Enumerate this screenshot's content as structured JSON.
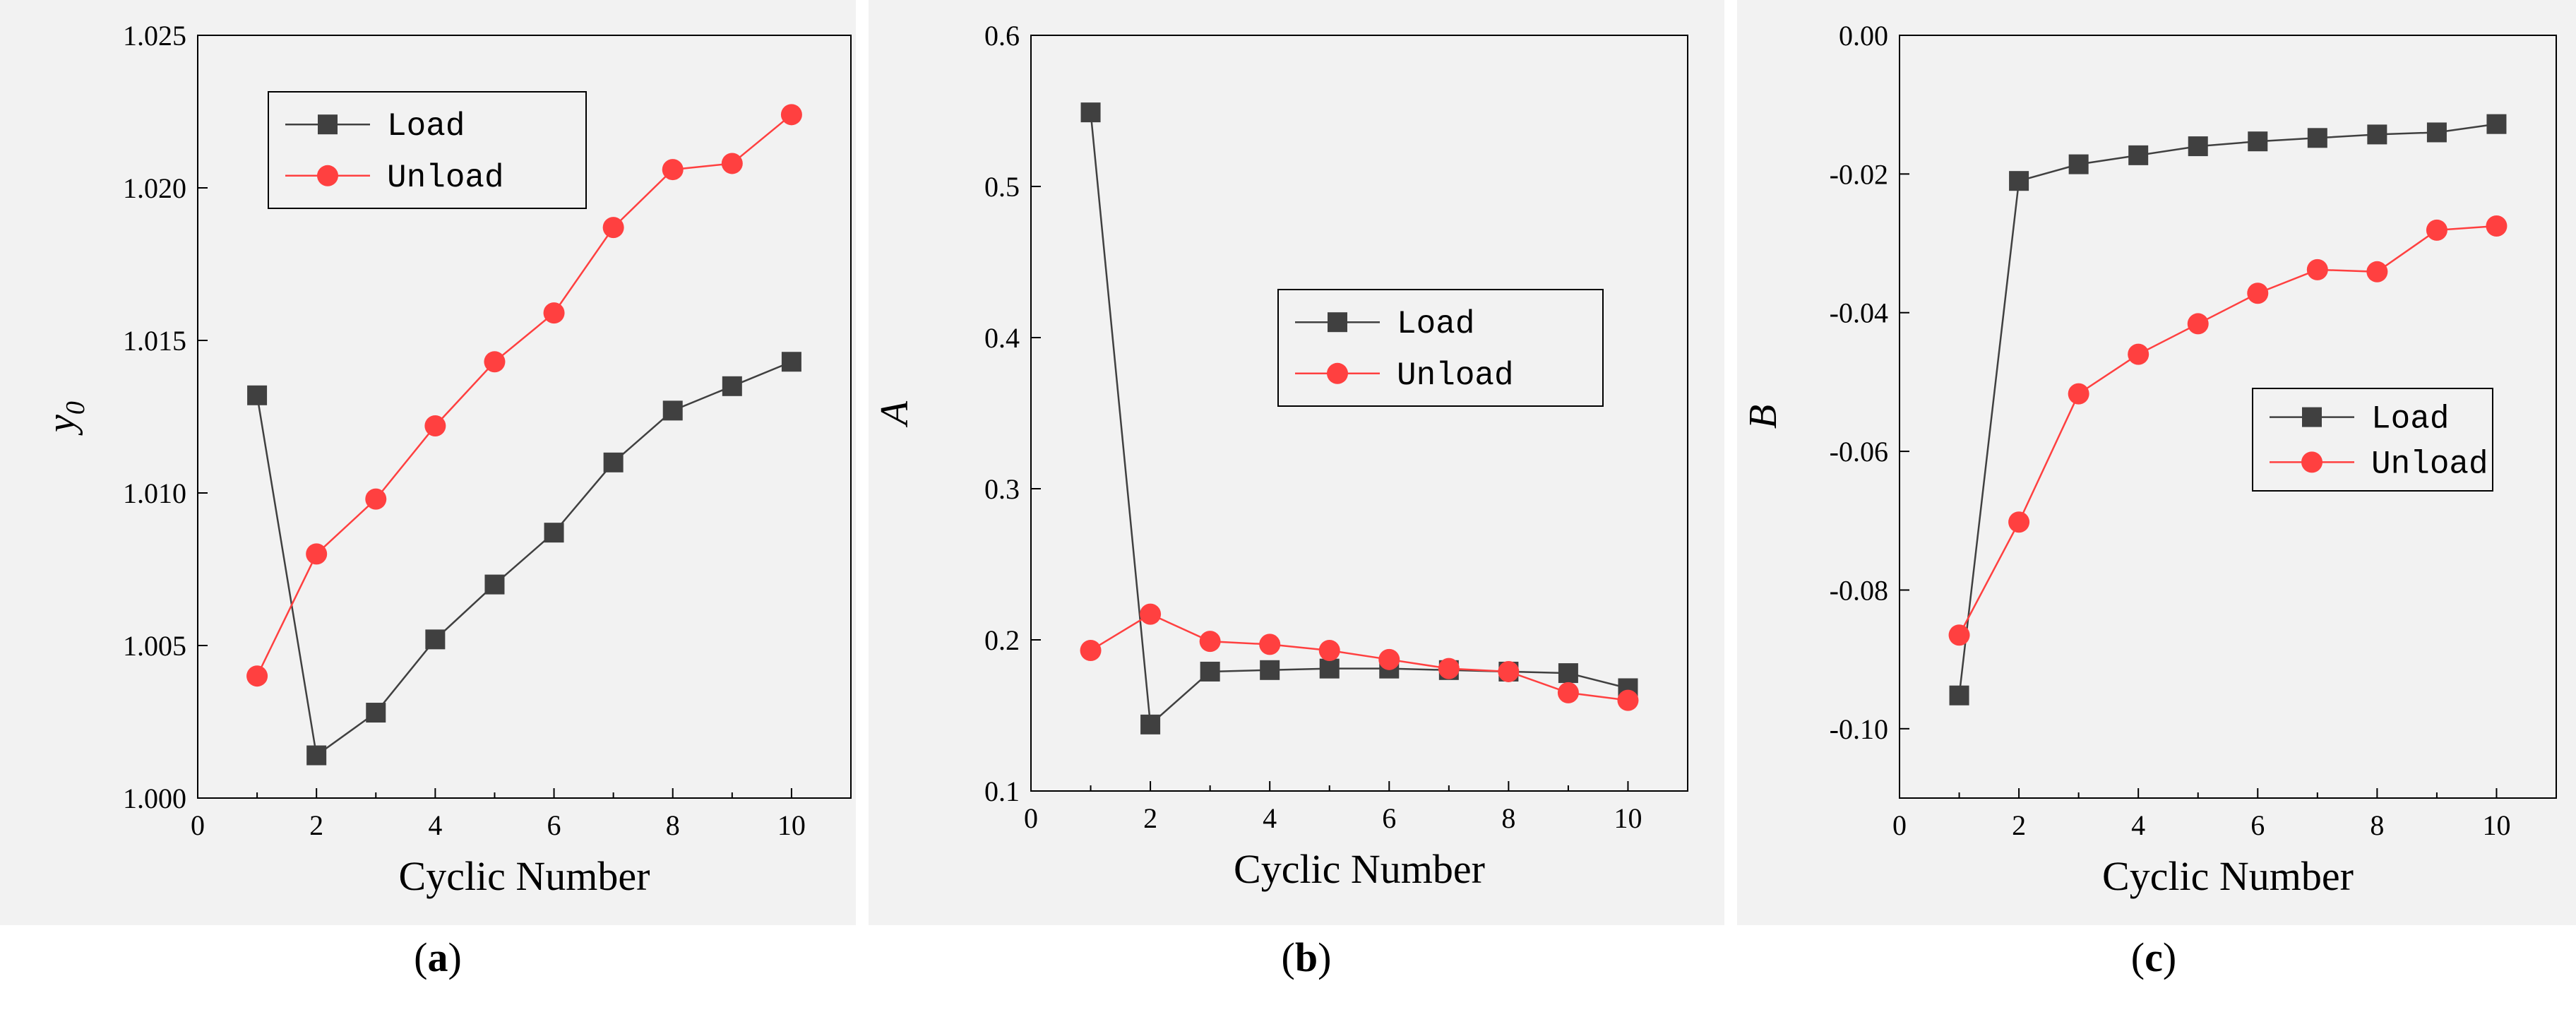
{
  "chart_data": [
    {
      "type": "line",
      "panel_label_open": "(",
      "panel_label_letter": "a",
      "panel_label_close": ")",
      "xlabel": "Cyclic Number",
      "ylabel_main": "y",
      "ylabel_sub": "0",
      "xlim": [
        0,
        11
      ],
      "ylim": [
        1.0,
        1.025
      ],
      "xticks": [
        0,
        2,
        4,
        6,
        8,
        10
      ],
      "yticks": [
        1.0,
        1.005,
        1.01,
        1.015,
        1.02,
        1.025
      ],
      "ytick_decimals": 3,
      "legend_position": "top-left",
      "x": [
        1,
        2,
        3,
        4,
        5,
        6,
        7,
        8,
        9,
        10
      ],
      "series": [
        {
          "name": "Load",
          "color": "#404040",
          "marker": "square",
          "values": [
            1.0132,
            1.0014,
            1.0028,
            1.0052,
            1.007,
            1.0087,
            1.011,
            1.0127,
            1.0135,
            1.0143
          ]
        },
        {
          "name": "Unload",
          "color": "#ff4040",
          "marker": "circle",
          "values": [
            1.004,
            1.008,
            1.0098,
            1.0122,
            1.0143,
            1.0159,
            1.0187,
            1.0206,
            1.0208,
            1.0224
          ]
        }
      ]
    },
    {
      "type": "line",
      "panel_label_open": "(",
      "panel_label_letter": "b",
      "panel_label_close": ")",
      "xlabel": "Cyclic Number",
      "ylabel_main": "A",
      "ylabel_sub": "",
      "xlim": [
        0,
        11
      ],
      "ylim": [
        0.1,
        0.6
      ],
      "xticks": [
        0,
        2,
        4,
        6,
        8,
        10
      ],
      "yticks": [
        0.1,
        0.2,
        0.3,
        0.4,
        0.5,
        0.6
      ],
      "ytick_decimals": 1,
      "legend_position": "center-right",
      "x": [
        1,
        2,
        3,
        4,
        5,
        6,
        7,
        8,
        9,
        10
      ],
      "series": [
        {
          "name": "Load",
          "color": "#404040",
          "marker": "square",
          "values": [
            0.549,
            0.144,
            0.179,
            0.18,
            0.181,
            0.181,
            0.18,
            0.179,
            0.178,
            0.168
          ]
        },
        {
          "name": "Unload",
          "color": "#ff4040",
          "marker": "circle",
          "values": [
            0.193,
            0.217,
            0.199,
            0.197,
            0.193,
            0.187,
            0.181,
            0.179,
            0.165,
            0.16
          ]
        }
      ]
    },
    {
      "type": "line",
      "panel_label_open": "(",
      "panel_label_letter": "c",
      "panel_label_close": ")",
      "xlabel": "Cyclic Number",
      "ylabel_main": "B",
      "ylabel_sub": "",
      "xlim": [
        0,
        11
      ],
      "ylim": [
        -0.11,
        0.0
      ],
      "xticks": [
        0,
        2,
        4,
        6,
        8,
        10
      ],
      "yticks": [
        -0.1,
        -0.08,
        -0.06,
        -0.04,
        -0.02,
        0.0
      ],
      "ytick_decimals": 2,
      "legend_position": "center-right",
      "x": [
        1,
        2,
        3,
        4,
        5,
        6,
        7,
        8,
        9,
        10
      ],
      "series": [
        {
          "name": "Load",
          "color": "#404040",
          "marker": "square",
          "values": [
            -0.0952,
            -0.021,
            -0.0186,
            -0.0173,
            -0.016,
            -0.0153,
            -0.0148,
            -0.0143,
            -0.014,
            -0.0128
          ]
        },
        {
          "name": "Unload",
          "color": "#ff4040",
          "marker": "circle",
          "values": [
            -0.0865,
            -0.0702,
            -0.0517,
            -0.046,
            -0.0416,
            -0.0372,
            -0.0338,
            -0.0341,
            -0.0281,
            -0.0275
          ]
        }
      ]
    }
  ]
}
